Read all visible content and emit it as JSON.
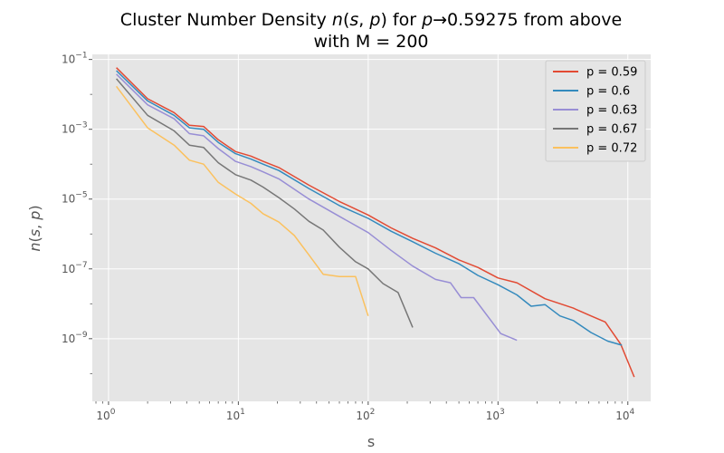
{
  "chart_data": {
    "type": "line",
    "title_line1": "Cluster Number Density n(s, p) for p→0.59275 from above",
    "title_line2": "with M = 200",
    "xlabel": "s",
    "ylabel": "n(s, p)",
    "x_scale": "log",
    "y_scale": "log",
    "xlim": [
      0.75,
      15000
    ],
    "ylim": [
      1.6e-11,
      0.14
    ],
    "x_ticks": [
      1,
      10,
      100,
      1000,
      10000
    ],
    "x_tick_labels": [
      {
        "base": "10",
        "exp": "0"
      },
      {
        "base": "10",
        "exp": "1"
      },
      {
        "base": "10",
        "exp": "2"
      },
      {
        "base": "10",
        "exp": "3"
      },
      {
        "base": "10",
        "exp": "4"
      }
    ],
    "y_ticks": [
      0.1,
      0.001,
      1e-05,
      1e-07,
      1e-09
    ],
    "y_tick_labels": [
      {
        "base": "10",
        "exp": "−1"
      },
      {
        "base": "10",
        "exp": "−3"
      },
      {
        "base": "10",
        "exp": "−5"
      },
      {
        "base": "10",
        "exp": "−7"
      },
      {
        "base": "10",
        "exp": "−9"
      }
    ],
    "grid": true,
    "legend_position": "top-right",
    "series": [
      {
        "name": "p = 0.59",
        "color": "#E24A33",
        "points": [
          [
            1.15,
            0.058
          ],
          [
            2.0,
            0.0075
          ],
          [
            3.2,
            0.003
          ],
          [
            4.2,
            0.0013
          ],
          [
            5.4,
            0.0012
          ],
          [
            7.0,
            0.0005
          ],
          [
            9.5,
            0.00023
          ],
          [
            12.5,
            0.00017
          ],
          [
            15.5,
            0.00012
          ],
          [
            20.5,
            8e-05
          ],
          [
            35,
            2.5e-05
          ],
          [
            60,
            8.5e-06
          ],
          [
            100,
            3.5e-06
          ],
          [
            150,
            1.5e-06
          ],
          [
            220,
            7.5e-07
          ],
          [
            330,
            4e-07
          ],
          [
            500,
            1.8e-07
          ],
          [
            700,
            1.1e-07
          ],
          [
            1000,
            5.5e-08
          ],
          [
            1400,
            4e-08
          ],
          [
            2300,
            1.4e-08
          ],
          [
            3800,
            7.5e-09
          ],
          [
            5200,
            4.5e-09
          ],
          [
            6700,
            3e-09
          ],
          [
            8800,
            7e-10
          ],
          [
            11200,
            8e-11
          ]
        ]
      },
      {
        "name": "p = 0.6",
        "color": "#348ABD",
        "points": [
          [
            1.15,
            0.048
          ],
          [
            2.0,
            0.0065
          ],
          [
            3.2,
            0.0025
          ],
          [
            4.2,
            0.0011
          ],
          [
            5.4,
            0.001
          ],
          [
            7.0,
            0.00042
          ],
          [
            9.5,
            0.0002
          ],
          [
            12.5,
            0.00014
          ],
          [
            15.5,
            0.0001
          ],
          [
            20.5,
            6.6e-05
          ],
          [
            35,
            2e-05
          ],
          [
            60,
            6.5e-06
          ],
          [
            100,
            2.8e-06
          ],
          [
            150,
            1.2e-06
          ],
          [
            220,
            6e-07
          ],
          [
            330,
            2.8e-07
          ],
          [
            500,
            1.4e-07
          ],
          [
            700,
            6.5e-08
          ],
          [
            1000,
            3.5e-08
          ],
          [
            1400,
            1.8e-08
          ],
          [
            1800,
            8.5e-09
          ],
          [
            2300,
            9.5e-09
          ],
          [
            3000,
            4.5e-09
          ],
          [
            3800,
            3.3e-09
          ],
          [
            5200,
            1.5e-09
          ],
          [
            7000,
            8.5e-10
          ],
          [
            9000,
            6.5e-10
          ]
        ]
      },
      {
        "name": "p = 0.63",
        "color": "#988ED5",
        "points": [
          [
            1.15,
            0.038
          ],
          [
            2.0,
            0.005
          ],
          [
            3.2,
            0.002
          ],
          [
            4.2,
            0.00075
          ],
          [
            5.4,
            0.00065
          ],
          [
            7.0,
            0.00028
          ],
          [
            9.5,
            0.00012
          ],
          [
            12.5,
            8.5e-05
          ],
          [
            15.5,
            6e-05
          ],
          [
            20.5,
            3.8e-05
          ],
          [
            35,
            1e-05
          ],
          [
            60,
            3.2e-06
          ],
          [
            100,
            1.1e-06
          ],
          [
            150,
            3.4e-07
          ],
          [
            220,
            1.2e-07
          ],
          [
            330,
            5e-08
          ],
          [
            430,
            4e-08
          ],
          [
            520,
            1.5e-08
          ],
          [
            650,
            1.5e-08
          ],
          [
            1050,
            1.4e-09
          ],
          [
            1400,
            9e-10
          ]
        ]
      },
      {
        "name": "p = 0.67",
        "color": "#777777",
        "points": [
          [
            1.15,
            0.028
          ],
          [
            2.0,
            0.0025
          ],
          [
            3.2,
            0.0009
          ],
          [
            4.2,
            0.00035
          ],
          [
            5.4,
            0.0003
          ],
          [
            7.0,
            0.00011
          ],
          [
            9.5,
            5e-05
          ],
          [
            12.5,
            3.5e-05
          ],
          [
            15.5,
            2.2e-05
          ],
          [
            20.5,
            1.1e-05
          ],
          [
            27,
            5.2e-06
          ],
          [
            35,
            2.3e-06
          ],
          [
            45,
            1.3e-06
          ],
          [
            60,
            4.2e-07
          ],
          [
            80,
            1.6e-07
          ],
          [
            100,
            1e-07
          ],
          [
            130,
            3.8e-08
          ],
          [
            170,
            2.1e-08
          ],
          [
            220,
            2.1e-09
          ]
        ]
      },
      {
        "name": "p = 0.72",
        "color": "#FBC15E",
        "points": [
          [
            1.15,
            0.017
          ],
          [
            2.0,
            0.0011
          ],
          [
            3.2,
            0.00035
          ],
          [
            4.2,
            0.00013
          ],
          [
            5.4,
            0.0001
          ],
          [
            7.0,
            3e-05
          ],
          [
            9.5,
            1.4e-05
          ],
          [
            12.5,
            7.5e-06
          ],
          [
            15.5,
            3.8e-06
          ],
          [
            20.5,
            2.2e-06
          ],
          [
            27,
            9e-07
          ],
          [
            35,
            2.5e-07
          ],
          [
            45,
            7e-08
          ],
          [
            60,
            6e-08
          ],
          [
            80,
            6e-08
          ],
          [
            100,
            4.5e-09
          ]
        ]
      }
    ]
  }
}
